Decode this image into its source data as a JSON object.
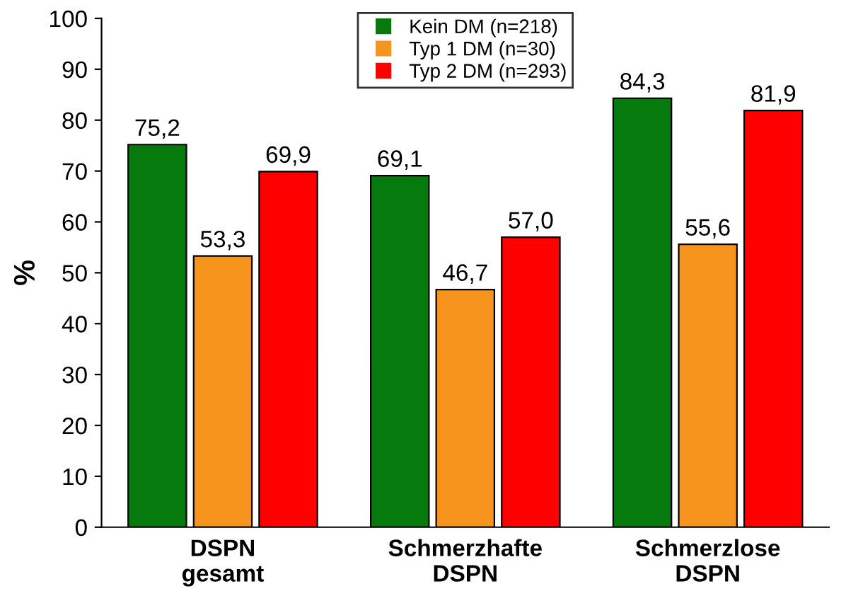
{
  "chart_data": {
    "type": "bar",
    "ylabel": "%",
    "categories": [
      "DSPN\ngesamt",
      "Schmerzhafte\nDSPN",
      "Schmerzlose\nDSPN"
    ],
    "series": [
      {
        "name": "Kein DM (n=218)",
        "color": "#067a0c",
        "values": [
          75.2,
          69.1,
          84.3
        ],
        "value_labels": [
          "75,2",
          "69,1",
          "84,3"
        ]
      },
      {
        "name": "Typ 1 DM (n=30)",
        "color": "#f7941d",
        "values": [
          53.3,
          46.7,
          55.6
        ],
        "value_labels": [
          "53,3",
          "46,7",
          "55,6"
        ]
      },
      {
        "name": "Typ 2 DM (n=293)",
        "color": "#ff0000",
        "values": [
          69.9,
          57.0,
          81.9
        ],
        "value_labels": [
          "69,9",
          "57,0",
          "81,9"
        ]
      }
    ],
    "ylim": [
      0,
      100
    ],
    "yticks": [
      0,
      10,
      20,
      30,
      40,
      50,
      60,
      70,
      80,
      90,
      100
    ],
    "grid": false,
    "legend": "top"
  }
}
